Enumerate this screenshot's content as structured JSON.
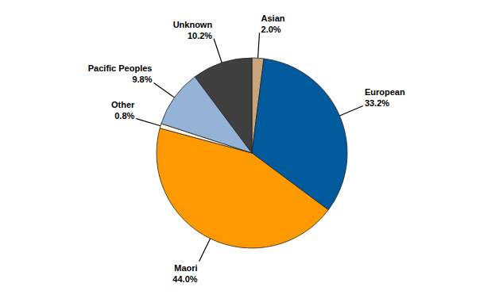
{
  "chart_data": {
    "type": "pie",
    "categories": [
      "Asian",
      "European",
      "Maori",
      "Other",
      "Pacific Peoples",
      "Unknown"
    ],
    "values": [
      2.0,
      33.2,
      44.0,
      0.8,
      9.8,
      10.2
    ],
    "value_labels": [
      "2.0%",
      "33.2%",
      "44.0%",
      "0.8%",
      "9.8%",
      "10.2%"
    ],
    "colors": [
      "#c8a57a",
      "#005a9c",
      "#ff9900",
      "#fff6dc",
      "#95b3d7",
      "#404040"
    ],
    "data_labels": true
  }
}
